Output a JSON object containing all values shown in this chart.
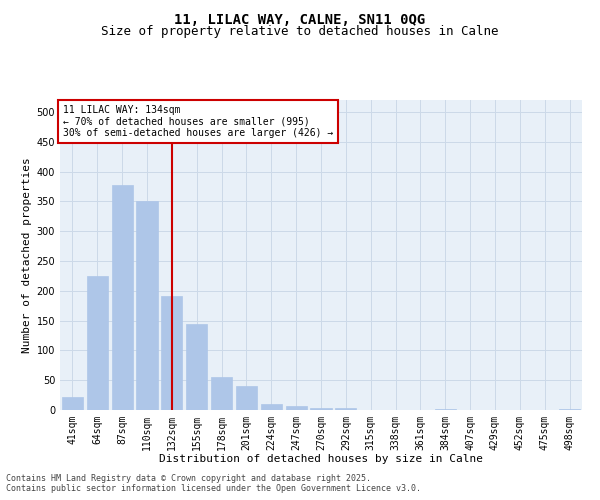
{
  "title1": "11, LILAC WAY, CALNE, SN11 0QG",
  "title2": "Size of property relative to detached houses in Calne",
  "xlabel": "Distribution of detached houses by size in Calne",
  "ylabel": "Number of detached properties",
  "categories": [
    "41sqm",
    "64sqm",
    "87sqm",
    "110sqm",
    "132sqm",
    "155sqm",
    "178sqm",
    "201sqm",
    "224sqm",
    "247sqm",
    "270sqm",
    "292sqm",
    "315sqm",
    "338sqm",
    "361sqm",
    "384sqm",
    "407sqm",
    "429sqm",
    "452sqm",
    "475sqm",
    "498sqm"
  ],
  "values": [
    22,
    225,
    378,
    350,
    192,
    145,
    55,
    40,
    10,
    7,
    4,
    3,
    0,
    0,
    0,
    1,
    0,
    0,
    0,
    0,
    2
  ],
  "bar_color": "#aec6e8",
  "bar_edgecolor": "#aec6e8",
  "redline_index": 4,
  "annotation_title": "11 LILAC WAY: 134sqm",
  "annotation_line1": "← 70% of detached houses are smaller (995)",
  "annotation_line2": "30% of semi-detached houses are larger (426) →",
  "annotation_box_color": "#ffffff",
  "annotation_box_edgecolor": "#cc0000",
  "redline_color": "#cc0000",
  "grid_color": "#ccd9e8",
  "background_color": "#e8f0f8",
  "ylim": [
    0,
    520
  ],
  "yticks": [
    0,
    50,
    100,
    150,
    200,
    250,
    300,
    350,
    400,
    450,
    500
  ],
  "footer1": "Contains HM Land Registry data © Crown copyright and database right 2025.",
  "footer2": "Contains public sector information licensed under the Open Government Licence v3.0.",
  "title_fontsize": 10,
  "subtitle_fontsize": 9,
  "tick_fontsize": 7,
  "label_fontsize": 8,
  "annotation_fontsize": 7,
  "footer_fontsize": 6
}
